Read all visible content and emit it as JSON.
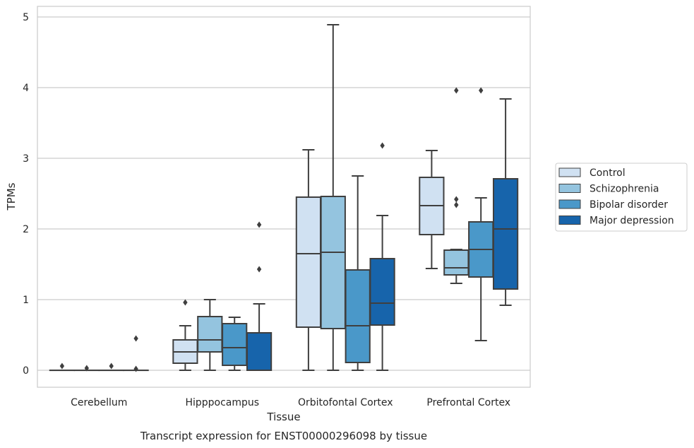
{
  "chart_data": {
    "type": "boxplot",
    "title": "",
    "caption": "Transcript expression for ENST00000296098 by tissue",
    "xlabel": "Tissue",
    "ylabel": "TPMs",
    "ylim": [
      -0.24,
      5.15
    ],
    "yticks": [
      0,
      1,
      2,
      3,
      4,
      5
    ],
    "grid": true,
    "legend_position": "right",
    "categories": [
      "Cerebellum",
      "Hipppocampus",
      "Orbitofontal Cortex",
      "Prefrontal Cortex"
    ],
    "series": [
      {
        "name": "Control",
        "color": "#d0e1f2",
        "boxes": [
          {
            "whislo": 0,
            "q1": 0,
            "med": 0,
            "q3": 0,
            "whishi": 0,
            "fliers": [
              0.06
            ]
          },
          {
            "whislo": 0,
            "q1": 0.1,
            "med": 0.26,
            "q3": 0.43,
            "whishi": 0.63,
            "fliers": [
              0.96
            ]
          },
          {
            "whislo": 0,
            "q1": 0.61,
            "med": 1.65,
            "q3": 2.45,
            "whishi": 3.12,
            "fliers": []
          },
          {
            "whislo": 1.44,
            "q1": 1.92,
            "med": 2.33,
            "q3": 2.73,
            "whishi": 3.11,
            "fliers": []
          }
        ]
      },
      {
        "name": "Schizophrenia",
        "color": "#94c4df",
        "boxes": [
          {
            "whislo": 0,
            "q1": 0,
            "med": 0,
            "q3": 0,
            "whishi": 0,
            "fliers": [
              0.03
            ]
          },
          {
            "whislo": 0,
            "q1": 0.26,
            "med": 0.43,
            "q3": 0.76,
            "whishi": 1.0,
            "fliers": []
          },
          {
            "whislo": 0,
            "q1": 0.59,
            "med": 1.67,
            "q3": 2.46,
            "whishi": 4.89,
            "fliers": []
          },
          {
            "whislo": 1.23,
            "q1": 1.35,
            "med": 1.45,
            "q3": 1.7,
            "whishi": 1.71,
            "fliers": [
              2.34,
              2.42,
              3.96
            ]
          }
        ]
      },
      {
        "name": "Bipolar disorder",
        "color": "#4a98c9",
        "boxes": [
          {
            "whislo": 0,
            "q1": 0,
            "med": 0,
            "q3": 0,
            "whishi": 0,
            "fliers": [
              0.06
            ]
          },
          {
            "whislo": 0,
            "q1": 0.07,
            "med": 0.32,
            "q3": 0.66,
            "whishi": 0.75,
            "fliers": []
          },
          {
            "whislo": 0,
            "q1": 0.11,
            "med": 0.63,
            "q3": 1.42,
            "whishi": 2.75,
            "fliers": []
          },
          {
            "whislo": 0.42,
            "q1": 1.32,
            "med": 1.71,
            "q3": 2.1,
            "whishi": 2.44,
            "fliers": [
              3.96
            ]
          }
        ]
      },
      {
        "name": "Major depression",
        "color": "#1764ab",
        "boxes": [
          {
            "whislo": 0,
            "q1": 0,
            "med": 0,
            "q3": 0,
            "whishi": 0,
            "fliers": [
              0.02,
              0.45
            ]
          },
          {
            "whislo": 0,
            "q1": 0,
            "med": 0,
            "q3": 0.53,
            "whishi": 0.94,
            "fliers": [
              1.43,
              2.06
            ]
          },
          {
            "whislo": 0,
            "q1": 0.64,
            "med": 0.95,
            "q3": 1.58,
            "whishi": 2.19,
            "fliers": [
              3.18
            ]
          },
          {
            "whislo": 0.92,
            "q1": 1.15,
            "med": 2.0,
            "q3": 2.71,
            "whishi": 3.84,
            "fliers": []
          }
        ]
      }
    ]
  }
}
